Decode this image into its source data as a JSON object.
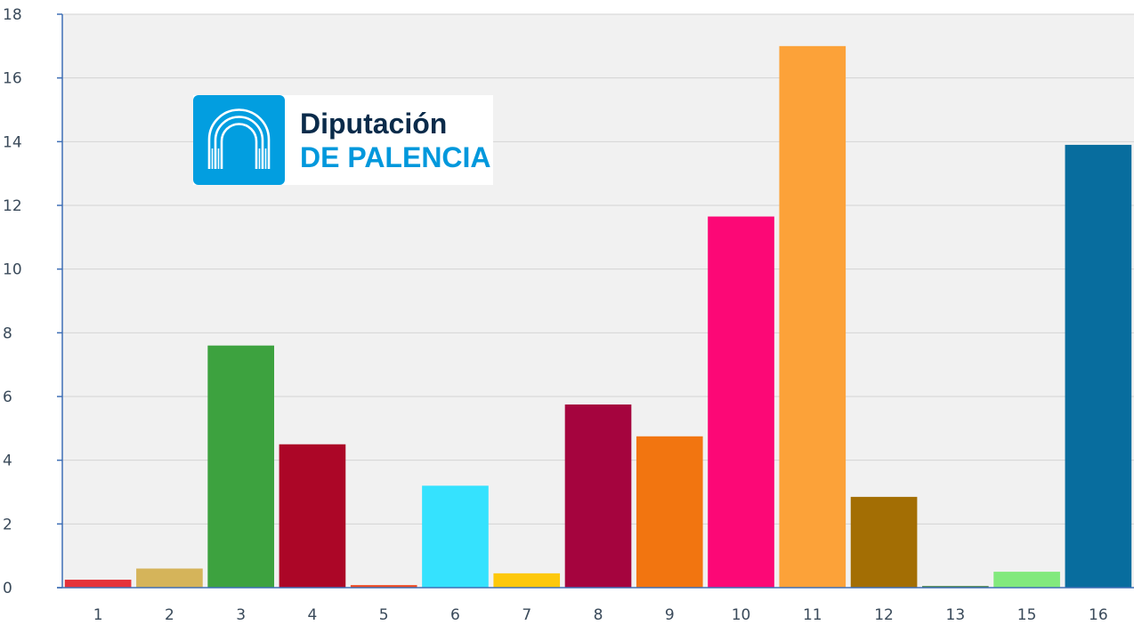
{
  "logo": {
    "line1": "Diputación",
    "line2": "DE PALENCIA",
    "brand_color": "#029ee0"
  },
  "chart_data": {
    "type": "bar",
    "categories": [
      "1",
      "2",
      "3",
      "4",
      "5",
      "6",
      "7",
      "8",
      "9",
      "10",
      "11",
      "12",
      "13",
      "15",
      "16"
    ],
    "values": [
      0.25,
      0.6,
      7.6,
      4.5,
      0.08,
      3.2,
      0.45,
      5.75,
      4.75,
      11.65,
      17.0,
      2.85,
      0.05,
      0.5,
      13.9
    ],
    "colors": [
      "#e5333b",
      "#d5b45a",
      "#3da23f",
      "#ac0627",
      "#ee4a23",
      "#35e2fe",
      "#fdc80b",
      "#a5043e",
      "#f27510",
      "#fc0876",
      "#fca239",
      "#a36e04",
      "#3e7d3e",
      "#82e97d",
      "#086d9e"
    ],
    "yticks": [
      0,
      2,
      4,
      6,
      8,
      10,
      12,
      14,
      16,
      18
    ],
    "ylim": [
      0,
      18
    ],
    "grid": true,
    "title": "",
    "xlabel": "",
    "ylabel": ""
  }
}
